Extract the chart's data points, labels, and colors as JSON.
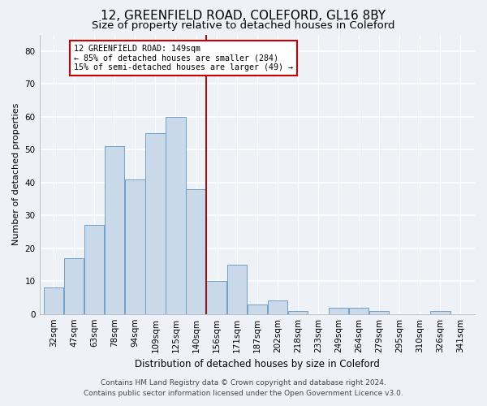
{
  "title1": "12, GREENFIELD ROAD, COLEFORD, GL16 8BY",
  "title2": "Size of property relative to detached houses in Coleford",
  "xlabel": "Distribution of detached houses by size in Coleford",
  "ylabel": "Number of detached properties",
  "categories": [
    "32sqm",
    "47sqm",
    "63sqm",
    "78sqm",
    "94sqm",
    "109sqm",
    "125sqm",
    "140sqm",
    "156sqm",
    "171sqm",
    "187sqm",
    "202sqm",
    "218sqm",
    "233sqm",
    "249sqm",
    "264sqm",
    "279sqm",
    "295sqm",
    "310sqm",
    "326sqm",
    "341sqm"
  ],
  "values": [
    8,
    17,
    27,
    51,
    41,
    55,
    60,
    38,
    10,
    15,
    3,
    4,
    1,
    0,
    2,
    2,
    1,
    0,
    0,
    1,
    0
  ],
  "bar_color": "#c9d9ea",
  "bar_edge_color": "#6fa0c8",
  "vline_color": "#8b1a1a",
  "ylim": [
    0,
    85
  ],
  "yticks": [
    0,
    10,
    20,
    30,
    40,
    50,
    60,
    70,
    80
  ],
  "annotation_text": "12 GREENFIELD ROAD: 149sqm\n← 85% of detached houses are smaller (284)\n15% of semi-detached houses are larger (49) →",
  "annotation_box_color": "#ffffff",
  "annotation_box_edge_color": "#cc0000",
  "footer1": "Contains HM Land Registry data © Crown copyright and database right 2024.",
  "footer2": "Contains public sector information licensed under the Open Government Licence v3.0.",
  "bg_color": "#eef2f7",
  "grid_color": "#ffffff",
  "title1_fontsize": 11,
  "title2_fontsize": 9.5,
  "xlabel_fontsize": 8.5,
  "ylabel_fontsize": 8,
  "tick_fontsize": 7.5,
  "footer_fontsize": 6.5
}
